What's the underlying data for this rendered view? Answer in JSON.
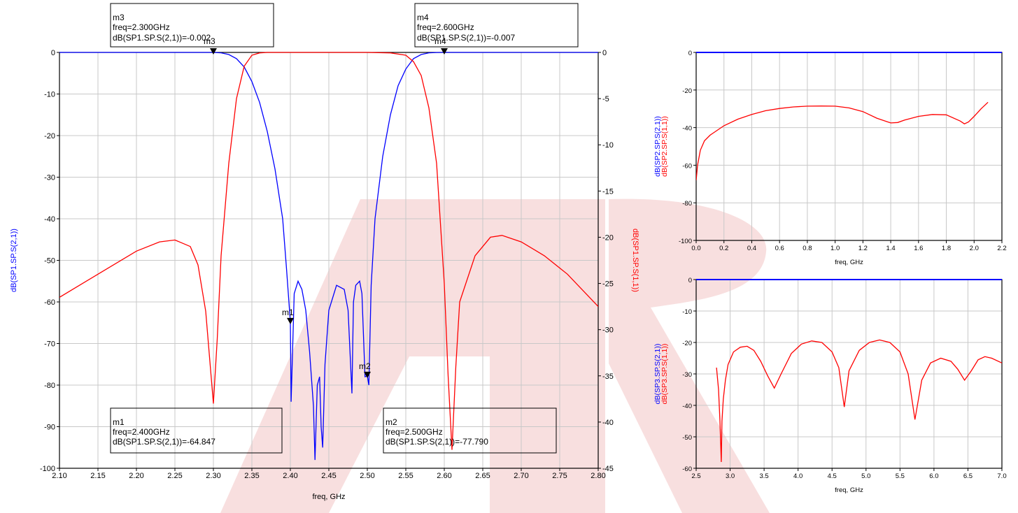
{
  "colors": {
    "s21": "#0000ff",
    "s11": "#ff0000",
    "grid": "#c8c8c8",
    "axis": "#000000",
    "watermark": "#f6d4d4"
  },
  "chart_data": [
    {
      "id": "main",
      "type": "line",
      "xlabel": "freq, GHz",
      "ylabel_left": "dB(SP1.SP.S(2,1))",
      "ylabel_right": "dB(SP1.SP.S(1,1))",
      "xlim": [
        2.1,
        2.8
      ],
      "ylim_left": [
        -100,
        0
      ],
      "ylim_right": [
        -45,
        0
      ],
      "xticks": [
        "2.10",
        "2.15",
        "2.20",
        "2.25",
        "2.30",
        "2.35",
        "2.40",
        "2.45",
        "2.50",
        "2.55",
        "2.60",
        "2.65",
        "2.70",
        "2.75",
        "2.80"
      ],
      "yticks_left": [
        "0",
        "-10",
        "-20",
        "-30",
        "-40",
        "-50",
        "-60",
        "-70",
        "-80",
        "-90",
        "-100"
      ],
      "yticks_right": [
        "0",
        "-5",
        "-10",
        "-15",
        "-20",
        "-25",
        "-30",
        "-35",
        "-40",
        "-45"
      ],
      "grid": true,
      "series": [
        {
          "name": "dB(SP1.SP.S(2,1))",
          "axis": "left",
          "color": "#0000ff",
          "x": [
            2.1,
            2.28,
            2.3,
            2.31,
            2.32,
            2.33,
            2.34,
            2.35,
            2.36,
            2.37,
            2.38,
            2.39,
            2.395,
            2.4,
            2.401,
            2.405,
            2.41,
            2.415,
            2.42,
            2.425,
            2.43,
            2.432,
            2.435,
            2.438,
            2.44,
            2.442,
            2.445,
            2.45,
            2.46,
            2.47,
            2.475,
            2.48,
            2.482,
            2.485,
            2.49,
            2.493,
            2.497,
            2.5,
            2.502,
            2.505,
            2.51,
            2.52,
            2.53,
            2.54,
            2.55,
            2.56,
            2.57,
            2.58,
            2.59,
            2.6,
            2.8
          ],
          "y": [
            0,
            0,
            -0.002,
            -0.1,
            -0.5,
            -1.5,
            -3.5,
            -7,
            -12,
            -19,
            -28,
            -40,
            -52,
            -64.8,
            -84,
            -58,
            -55,
            -57,
            -62,
            -72,
            -85,
            -98,
            -80,
            -78,
            -90,
            -95,
            -75,
            -62,
            -56,
            -57,
            -62,
            -82,
            -60,
            -56,
            -55,
            -58,
            -78,
            -77.8,
            -80,
            -56,
            -40,
            -25,
            -15,
            -8,
            -4,
            -1.5,
            -0.5,
            -0.1,
            -0.02,
            -0.007,
            0
          ]
        },
        {
          "name": "dB(SP1.SP.S(1,1))",
          "axis": "right",
          "color": "#ff0000",
          "x": [
            2.1,
            2.15,
            2.2,
            2.23,
            2.25,
            2.27,
            2.28,
            2.29,
            2.295,
            2.3,
            2.305,
            2.31,
            2.32,
            2.33,
            2.34,
            2.35,
            2.36,
            2.37,
            2.38,
            2.4,
            2.5,
            2.53,
            2.55,
            2.56,
            2.57,
            2.58,
            2.59,
            2.6,
            2.605,
            2.61,
            2.615,
            2.62,
            2.64,
            2.66,
            2.675,
            2.7,
            2.73,
            2.76,
            2.8
          ],
          "y": [
            -26.5,
            -24,
            -21.5,
            -20.5,
            -20.3,
            -21,
            -23,
            -28,
            -33,
            -38,
            -31,
            -22,
            -12,
            -5,
            -1.5,
            -0.3,
            -0.05,
            0,
            0,
            0,
            0,
            -0.05,
            -0.3,
            -1,
            -2.5,
            -6,
            -12,
            -25,
            -35,
            -43,
            -34,
            -27,
            -22,
            -20,
            -19.8,
            -20.5,
            -22,
            -24,
            -27.5
          ]
        }
      ],
      "markers": [
        {
          "name": "m1",
          "x": 2.4,
          "y": -64.847
        },
        {
          "name": "m2",
          "x": 2.5,
          "y": -77.79
        },
        {
          "name": "m3",
          "x": 2.3,
          "y": -0.002
        },
        {
          "name": "m4",
          "x": 2.6,
          "y": -0.007
        }
      ],
      "annotations": [
        {
          "marker": "m1",
          "lines": [
            "m1",
            "freq=2.400GHz",
            "dB(SP1.SP.S(2,1))=-64.847"
          ]
        },
        {
          "marker": "m2",
          "lines": [
            "m2",
            "freq=2.500GHz",
            "dB(SP1.SP.S(2,1))=-77.790"
          ]
        },
        {
          "marker": "m3",
          "lines": [
            "m3",
            "freq=2.300GHz",
            "dB(SP1.SP.S(2,1))=-0.002"
          ]
        },
        {
          "marker": "m4",
          "lines": [
            "m4",
            "freq=2.600GHz",
            "dB(SP1.SP.S(2,1))=-0.007"
          ]
        }
      ]
    },
    {
      "id": "top-right",
      "type": "line",
      "xlabel": "freq, GHz",
      "ylabel_lines": [
        "dB(SP2.SP.S(2,1))",
        "dB(SP2.SP.S(1,1))"
      ],
      "xlim": [
        0.0,
        2.2
      ],
      "ylim": [
        -100,
        0
      ],
      "xticks": [
        "0.0",
        "0.2",
        "0.4",
        "0.6",
        "0.8",
        "1.0",
        "1.2",
        "1.4",
        "1.6",
        "1.8",
        "2.0",
        "2.2"
      ],
      "yticks": [
        "0",
        "-20",
        "-40",
        "-60",
        "-80",
        "-100"
      ],
      "grid": true,
      "series": [
        {
          "name": "dB(SP2.SP.S(2,1))",
          "color": "#0000ff",
          "x": [
            0.0,
            2.2
          ],
          "y": [
            0,
            0
          ]
        },
        {
          "name": "dB(SP2.SP.S(1,1))",
          "color": "#ff0000",
          "x": [
            0.0,
            0.01,
            0.03,
            0.06,
            0.1,
            0.2,
            0.3,
            0.4,
            0.5,
            0.6,
            0.7,
            0.8,
            0.9,
            1.0,
            1.1,
            1.2,
            1.3,
            1.4,
            1.45,
            1.5,
            1.6,
            1.7,
            1.8,
            1.9,
            1.93,
            1.96,
            2.0,
            2.05,
            2.1
          ],
          "y": [
            -68,
            -60,
            -52,
            -47,
            -44,
            -39,
            -35.5,
            -33,
            -31,
            -29.8,
            -29,
            -28.6,
            -28.5,
            -28.6,
            -29.5,
            -31.5,
            -35,
            -37.5,
            -37.3,
            -36,
            -34,
            -33,
            -33.2,
            -36.5,
            -38,
            -37,
            -34,
            -30,
            -26.5
          ]
        }
      ]
    },
    {
      "id": "bottom-right",
      "type": "line",
      "xlabel": "freq, GHz",
      "ylabel_lines": [
        "dB(SP3.SP.S(2,1))",
        "dB(SP3.SP.S(1,1))"
      ],
      "xlim": [
        2.5,
        7.0
      ],
      "ylim": [
        -60,
        0
      ],
      "xticks": [
        "2.5",
        "3.0",
        "3.5",
        "4.0",
        "4.5",
        "5.0",
        "5.5",
        "6.0",
        "6.5",
        "7.0"
      ],
      "yticks": [
        "0",
        "-10",
        "-20",
        "-30",
        "-40",
        "-50",
        "-60"
      ],
      "grid": true,
      "series": [
        {
          "name": "dB(SP3.SP.S(2,1))",
          "color": "#0000ff",
          "x": [
            2.5,
            7.0
          ],
          "y": [
            0,
            0
          ]
        },
        {
          "name": "dB(SP3.SP.S(1,1))",
          "color": "#ff0000",
          "x": [
            2.8,
            2.83,
            2.85,
            2.87,
            2.88,
            2.9,
            2.93,
            2.97,
            3.05,
            3.15,
            3.25,
            3.35,
            3.45,
            3.55,
            3.65,
            3.75,
            3.9,
            4.05,
            4.2,
            4.35,
            4.5,
            4.6,
            4.68,
            4.75,
            4.9,
            5.05,
            5.2,
            5.35,
            5.5,
            5.62,
            5.72,
            5.82,
            5.95,
            6.1,
            6.25,
            6.35,
            6.45,
            6.55,
            6.65,
            6.75,
            6.85,
            7.0
          ],
          "y": [
            -28,
            -35,
            -45,
            -58,
            -45,
            -38,
            -32,
            -27,
            -23,
            -21.5,
            -21.2,
            -22.5,
            -26,
            -30.5,
            -34.5,
            -30,
            -23.5,
            -20.5,
            -19.5,
            -20,
            -23,
            -28,
            -40.5,
            -29,
            -22.5,
            -20,
            -19.2,
            -20,
            -23,
            -30,
            -44.5,
            -32,
            -26.5,
            -25,
            -26,
            -28.5,
            -32,
            -29,
            -25.5,
            -24.5,
            -25,
            -26.5
          ]
        }
      ]
    }
  ]
}
